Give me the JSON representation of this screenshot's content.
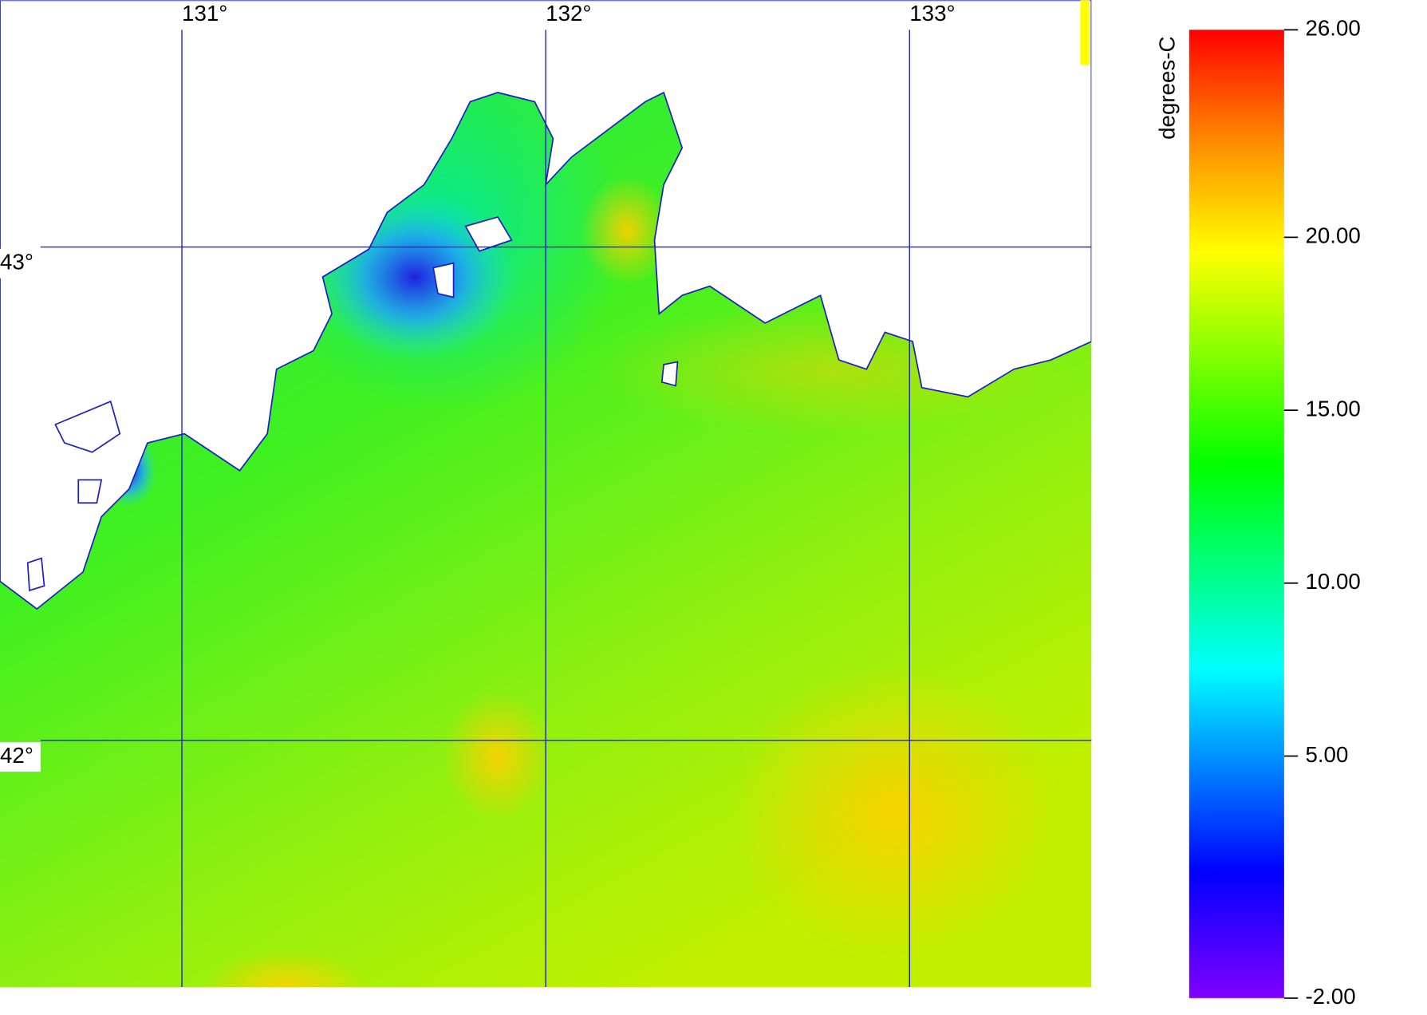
{
  "map": {
    "lon_range": [
      130.5,
      133.5
    ],
    "lat_range": [
      41.5,
      43.5
    ],
    "lon_ticks": [
      {
        "value": 131,
        "label": "131°"
      },
      {
        "value": 132,
        "label": "132°"
      },
      {
        "value": 133,
        "label": "133°"
      }
    ],
    "lat_ticks": [
      {
        "value": 43,
        "label": "43°"
      },
      {
        "value": 42,
        "label": "42°"
      }
    ]
  },
  "colorbar": {
    "label": "degrees-C",
    "lim": [
      -2,
      26
    ],
    "ticks": [
      {
        "value": 26,
        "label": "26.00"
      },
      {
        "value": 20,
        "label": "20.00"
      },
      {
        "value": 15,
        "label": "15.00"
      },
      {
        "value": 10,
        "label": "10.00"
      },
      {
        "value": 5,
        "label": "5.00"
      },
      {
        "value": -2,
        "label": "-2.00"
      }
    ]
  }
}
